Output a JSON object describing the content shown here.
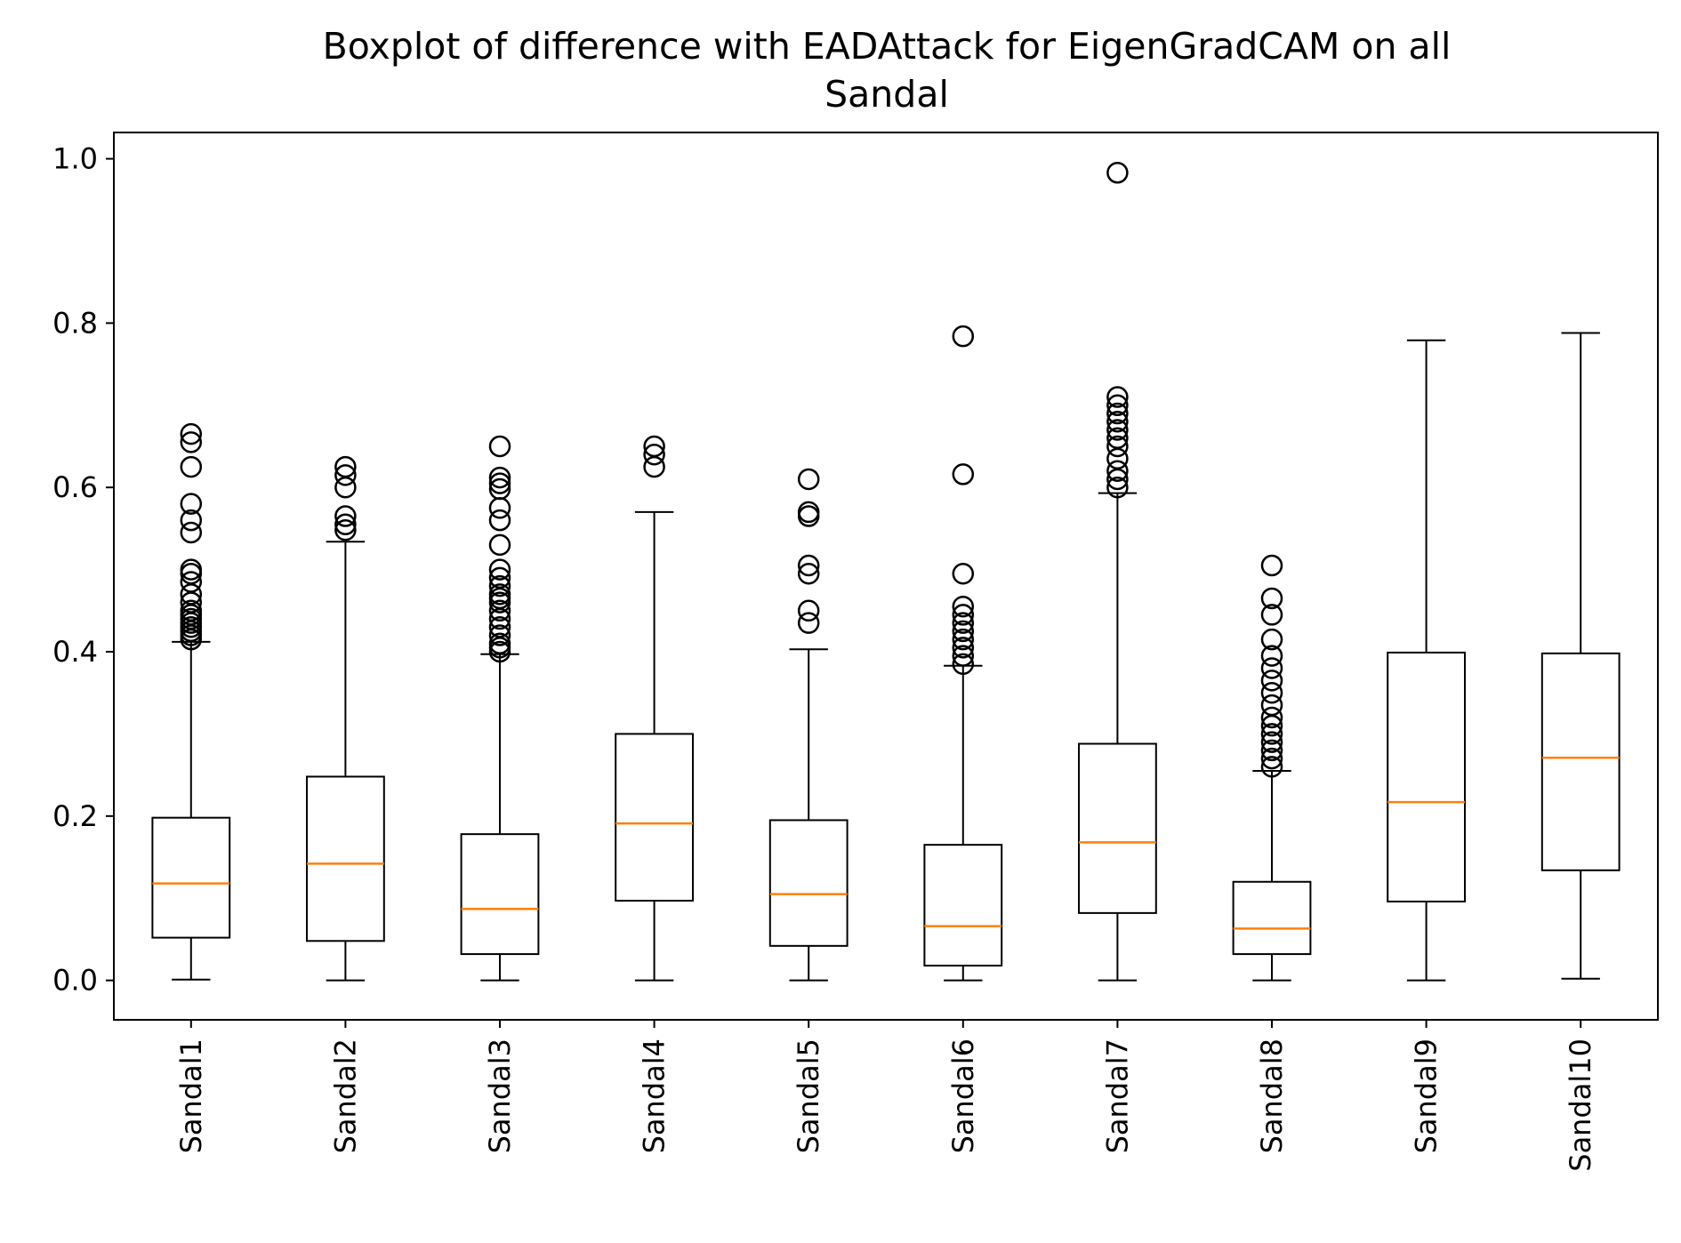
{
  "chart_data": {
    "type": "boxplot",
    "title_lines": [
      "Boxplot of difference with EADAttack for EigenGradCAM on all",
      "Sandal"
    ],
    "xlabel": "",
    "ylabel": "",
    "ylim": [
      -0.048,
      1.032
    ],
    "yticks": [
      0.0,
      0.2,
      0.4,
      0.6,
      0.8,
      1.0
    ],
    "ytick_labels": [
      "0.0",
      "0.2",
      "0.4",
      "0.6",
      "0.8",
      "1.0"
    ],
    "grid": false,
    "colors": {
      "box": "#000000",
      "median": "#ff7f0e",
      "flier": "#000000"
    },
    "categories": [
      "Sandal1",
      "Sandal2",
      "Sandal3",
      "Sandal4",
      "Sandal5",
      "Sandal6",
      "Sandal7",
      "Sandal8",
      "Sandal9",
      "Sandal10"
    ],
    "boxes": [
      {
        "label": "Sandal1",
        "whisker_low": 0.001,
        "q1": 0.052,
        "median": 0.118,
        "q3": 0.198,
        "whisker_high": 0.412,
        "outliers": [
          0.665,
          0.655,
          0.625,
          0.58,
          0.56,
          0.545,
          0.5,
          0.495,
          0.485,
          0.47,
          0.46,
          0.45,
          0.445,
          0.44,
          0.435,
          0.43,
          0.425,
          0.42,
          0.415
        ]
      },
      {
        "label": "Sandal2",
        "whisker_low": 0.0,
        "q1": 0.048,
        "median": 0.142,
        "q3": 0.248,
        "whisker_high": 0.534,
        "outliers": [
          0.625,
          0.615,
          0.6,
          0.565,
          0.555,
          0.548
        ]
      },
      {
        "label": "Sandal3",
        "whisker_low": 0.0,
        "q1": 0.032,
        "median": 0.087,
        "q3": 0.178,
        "whisker_high": 0.397,
        "outliers": [
          0.65,
          0.612,
          0.605,
          0.598,
          0.575,
          0.56,
          0.53,
          0.5,
          0.49,
          0.48,
          0.47,
          0.465,
          0.46,
          0.45,
          0.44,
          0.43,
          0.42,
          0.41,
          0.405,
          0.4
        ]
      },
      {
        "label": "Sandal4",
        "whisker_low": 0.0,
        "q1": 0.097,
        "median": 0.191,
        "q3": 0.3,
        "whisker_high": 0.57,
        "outliers": [
          0.65,
          0.64,
          0.625
        ]
      },
      {
        "label": "Sandal5",
        "whisker_low": 0.0,
        "q1": 0.042,
        "median": 0.105,
        "q3": 0.195,
        "whisker_high": 0.403,
        "outliers": [
          0.61,
          0.57,
          0.565,
          0.505,
          0.495,
          0.45,
          0.435
        ]
      },
      {
        "label": "Sandal6",
        "whisker_low": 0.0,
        "q1": 0.018,
        "median": 0.066,
        "q3": 0.165,
        "whisker_high": 0.383,
        "outliers": [
          0.784,
          0.616,
          0.495,
          0.455,
          0.445,
          0.435,
          0.425,
          0.415,
          0.405,
          0.395,
          0.385
        ]
      },
      {
        "label": "Sandal7",
        "whisker_low": 0.0,
        "q1": 0.082,
        "median": 0.168,
        "q3": 0.288,
        "whisker_high": 0.593,
        "outliers": [
          0.983,
          0.71,
          0.7,
          0.69,
          0.68,
          0.67,
          0.66,
          0.65,
          0.635,
          0.62,
          0.61,
          0.6
        ]
      },
      {
        "label": "Sandal8",
        "whisker_low": 0.0,
        "q1": 0.032,
        "median": 0.063,
        "q3": 0.12,
        "whisker_high": 0.255,
        "outliers": [
          0.505,
          0.465,
          0.445,
          0.415,
          0.395,
          0.38,
          0.365,
          0.35,
          0.335,
          0.32,
          0.31,
          0.3,
          0.29,
          0.28,
          0.27,
          0.26
        ]
      },
      {
        "label": "Sandal9",
        "whisker_low": 0.0,
        "q1": 0.096,
        "median": 0.217,
        "q3": 0.399,
        "whisker_high": 0.779,
        "outliers": []
      },
      {
        "label": "Sandal10",
        "whisker_low": 0.002,
        "q1": 0.134,
        "median": 0.271,
        "q3": 0.398,
        "whisker_high": 0.788,
        "outliers": []
      }
    ]
  }
}
